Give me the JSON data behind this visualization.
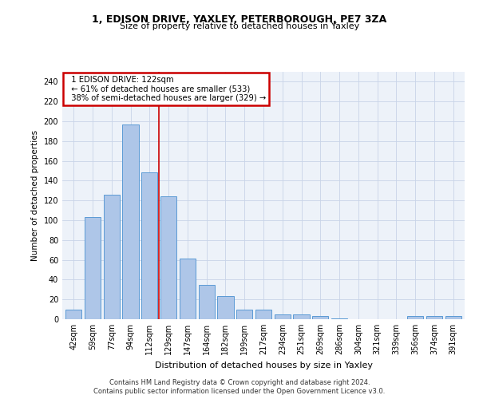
{
  "title1": "1, EDISON DRIVE, YAXLEY, PETERBOROUGH, PE7 3ZA",
  "title2": "Size of property relative to detached houses in Yaxley",
  "xlabel": "Distribution of detached houses by size in Yaxley",
  "ylabel": "Number of detached properties",
  "categories": [
    "42sqm",
    "59sqm",
    "77sqm",
    "94sqm",
    "112sqm",
    "129sqm",
    "147sqm",
    "164sqm",
    "182sqm",
    "199sqm",
    "217sqm",
    "234sqm",
    "251sqm",
    "269sqm",
    "286sqm",
    "304sqm",
    "321sqm",
    "339sqm",
    "356sqm",
    "374sqm",
    "391sqm"
  ],
  "values": [
    10,
    103,
    126,
    197,
    148,
    124,
    61,
    35,
    23,
    10,
    10,
    5,
    5,
    3,
    1,
    0,
    0,
    0,
    3,
    3,
    3
  ],
  "bar_color": "#aec6e8",
  "bar_edge_color": "#5b9bd5",
  "annotation_line1": "1 EDISON DRIVE: 122sqm",
  "annotation_line2": "← 61% of detached houses are smaller (533)",
  "annotation_line3": "38% of semi-detached houses are larger (329) →",
  "vline_color": "#cc0000",
  "vline_position": 4.5,
  "annotation_box_color": "#ffffff",
  "annotation_box_edge_color": "#cc0000",
  "footer1": "Contains HM Land Registry data © Crown copyright and database right 2024.",
  "footer2": "Contains public sector information licensed under the Open Government Licence v3.0.",
  "ylim": [
    0,
    250
  ],
  "yticks": [
    0,
    20,
    40,
    60,
    80,
    100,
    120,
    140,
    160,
    180,
    200,
    220,
    240
  ],
  "figwidth": 6.0,
  "figheight": 5.0,
  "bg_color": "#edf2f9",
  "grid_color": "#c8d4e8"
}
